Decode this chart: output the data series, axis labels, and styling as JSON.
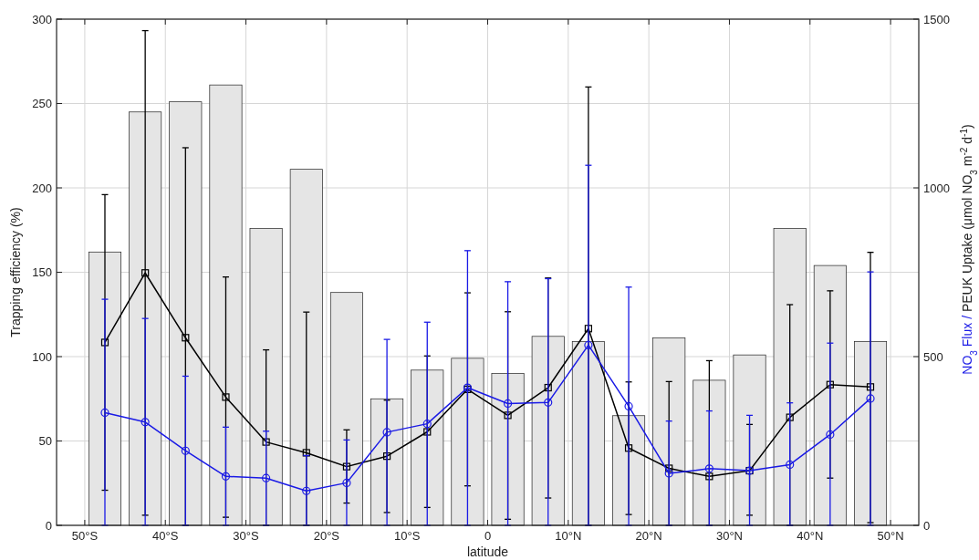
{
  "chart_data": {
    "type": "bar",
    "xlabel": "latitude",
    "ylabel": "Trapping efficiency (%)",
    "y2label": "NO$_{3}$ Flux /  PEUK Uptake  (μmol NO$_{3}$ m$^{-2}$ d$^{-1}$)",
    "x": [
      -47.5,
      -42.5,
      -37.5,
      -32.5,
      -27.5,
      -22.5,
      -17.5,
      -12.5,
      -7.5,
      -2.5,
      2.5,
      7.5,
      12.5,
      17.5,
      22.5,
      27.5,
      32.5,
      37.5,
      42.5,
      47.5
    ],
    "xlim": [
      -53.5,
      53.5
    ],
    "xticks": [
      {
        "value": -50,
        "label": "50°S"
      },
      {
        "value": -40,
        "label": "40°S"
      },
      {
        "value": -30,
        "label": "30°S"
      },
      {
        "value": -20,
        "label": "20°S"
      },
      {
        "value": -10,
        "label": "10°S"
      },
      0,
      {
        "value": 10,
        "label": "10°N"
      },
      {
        "value": 20,
        "label": "20°N"
      },
      {
        "value": 30,
        "label": "30°N"
      },
      {
        "value": 40,
        "label": "40°N"
      },
      {
        "value": 50,
        "label": "50°N"
      }
    ],
    "ylim": [
      0,
      300
    ],
    "yticks": [
      0,
      50,
      100,
      150,
      200,
      250,
      300
    ],
    "y2lim": [
      0,
      1500
    ],
    "y2ticks": [
      0,
      500,
      1000,
      1500
    ],
    "grid": true,
    "series": [
      {
        "color": "#e5e5e5",
        "values": [
          162,
          245,
          251,
          261,
          176,
          211,
          138,
          75,
          92,
          99,
          90,
          112,
          109,
          65,
          111,
          86,
          101,
          176,
          154,
          109
        ]
      },
      {
        "type": "line",
        "axis": "y2",
        "color": "#000000",
        "marker": "square",
        "values": [
          542,
          748,
          556,
          380,
          247,
          215,
          174,
          205,
          277,
          403,
          326,
          408,
          583,
          229,
          169,
          145,
          162,
          320,
          417,
          410
        ],
        "errors": [
          [
            104,
            980
          ],
          [
            30,
            1466
          ],
          [
            0,
            1119
          ],
          [
            24,
            736
          ],
          [
            0,
            520
          ],
          [
            0,
            632
          ],
          [
            66,
            283
          ],
          [
            38,
            371
          ],
          [
            53,
            502
          ],
          [
            117,
            689
          ],
          [
            18,
            633
          ],
          [
            81,
            733
          ],
          [
            0,
            1299
          ],
          [
            32,
            425
          ],
          [
            0,
            426
          ],
          [
            0,
            488
          ],
          [
            30,
            299
          ],
          [
            0,
            654
          ],
          [
            140,
            695
          ],
          [
            8,
            809
          ]
        ]
      },
      {
        "type": "line",
        "axis": "y2",
        "color": "#1a1ae6",
        "marker": "circle",
        "values": [
          334,
          306,
          221,
          145,
          140,
          102,
          126,
          276,
          301,
          408,
          361,
          364,
          534,
          353,
          154,
          168,
          162,
          180,
          269,
          376
        ],
        "errors": [
          [
            0,
            670
          ],
          [
            0,
            613
          ],
          [
            0,
            442
          ],
          [
            0,
            291
          ],
          [
            0,
            279
          ],
          [
            0,
            207
          ],
          [
            0,
            253
          ],
          [
            0,
            551
          ],
          [
            0,
            602
          ],
          [
            0,
            814
          ],
          [
            0,
            722
          ],
          [
            0,
            731
          ],
          [
            0,
            1067
          ],
          [
            0,
            706
          ],
          [
            0,
            309
          ],
          [
            0,
            339
          ],
          [
            0,
            326
          ],
          [
            0,
            363
          ],
          [
            0,
            540
          ],
          [
            0,
            751
          ]
        ]
      }
    ]
  }
}
